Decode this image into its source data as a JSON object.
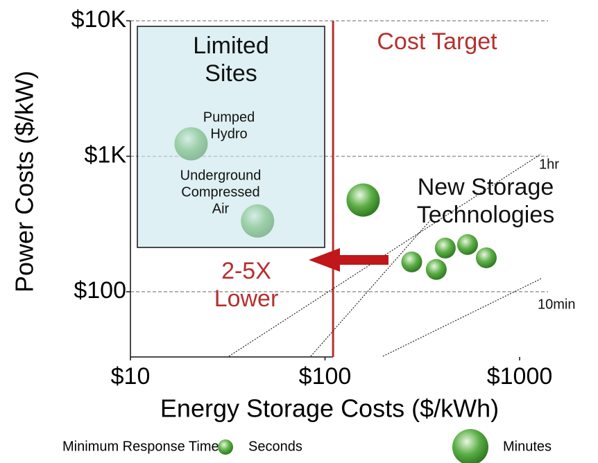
{
  "chart_data": {
    "type": "scatter",
    "x_label": "Energy Storage Costs ($/kWh)",
    "y_label": "Power Costs ($/kW)",
    "log_x": true,
    "log_y": true,
    "grid": true,
    "xlim": [
      10,
      1400
    ],
    "ylim": [
      33,
      10000
    ],
    "xticks": [
      {
        "value": 10,
        "label": "$10"
      },
      {
        "value": 100,
        "label": "$100"
      },
      {
        "value": 1000,
        "label": "$1000"
      }
    ],
    "yticks": [
      {
        "value": 100,
        "label": "$100"
      },
      {
        "value": 1000,
        "label": "$1K"
      },
      {
        "value": 10000,
        "label": "$10K"
      }
    ],
    "cost_target": 110,
    "legend_title": "Minimum Response Time",
    "legend": "bottom",
    "series": [
      {
        "name": "Seconds",
        "color": "#5cae46",
        "x": [
          279,
          415,
          540,
          373,
          674
        ],
        "values": [
          166,
          210,
          223,
          146,
          178
        ]
      },
      {
        "name": "Minutes",
        "color": "#5cae46",
        "x": [
          20.5,
          45,
          157
        ],
        "values": [
          1236,
          333,
          475
        ]
      }
    ],
    "annotations": [
      {
        "text": [
          "Limited",
          "Sites"
        ]
      },
      {
        "text": [
          "Pumped",
          "Hydro"
        ]
      },
      {
        "text": [
          "Underground",
          "Compressed",
          "Air"
        ]
      },
      {
        "text": [
          "Cost Target"
        ]
      },
      {
        "text": [
          "New Storage",
          "Technologies"
        ]
      },
      {
        "text": [
          "2-5X",
          "Lower"
        ]
      },
      {
        "text": [
          "1hr"
        ]
      },
      {
        "text": [
          "10min"
        ]
      }
    ]
  }
}
